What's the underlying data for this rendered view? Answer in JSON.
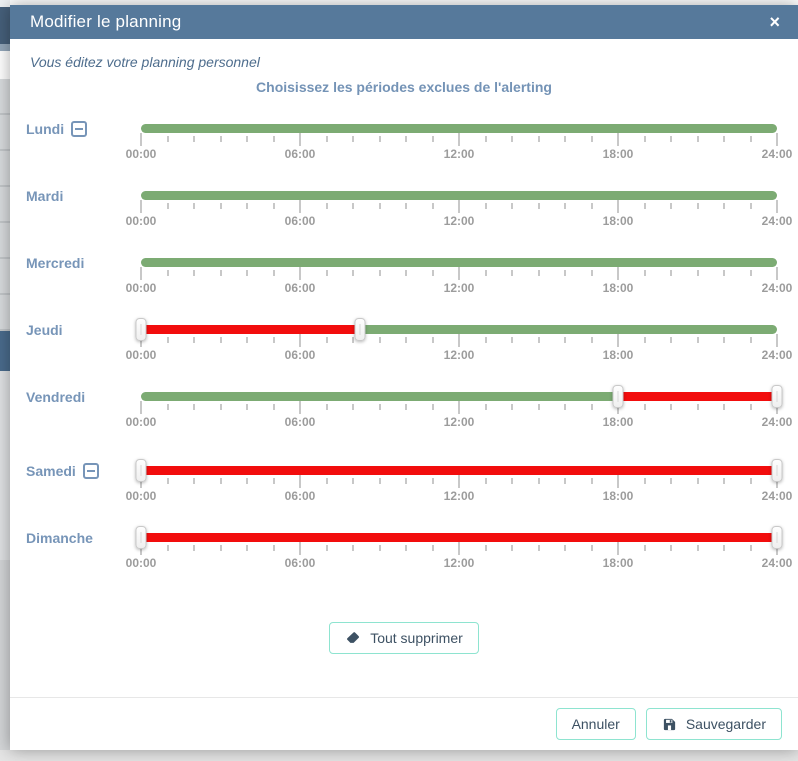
{
  "modal": {
    "title": "Modifier le planning",
    "close_glyph": "×",
    "subtitle": "Vous éditez votre planning personnel",
    "heading": "Choisissez les périodes exclues de l'alerting"
  },
  "slider": {
    "hours_total": 24,
    "minor_tick_every_hours": 1,
    "major_tick_every_hours": 6,
    "tick_labels": [
      "00:00",
      "06:00",
      "12:00",
      "18:00",
      "24:00"
    ],
    "colors": {
      "active": "#7cab73",
      "excluded": "#f20d0d"
    }
  },
  "days": [
    {
      "label": "Lundi",
      "has_remove_button": true,
      "extra_gap": false,
      "segments": [
        {
          "state": "active",
          "start": 0,
          "end": 24
        }
      ],
      "handles": []
    },
    {
      "label": "Mardi",
      "has_remove_button": false,
      "extra_gap": false,
      "segments": [
        {
          "state": "active",
          "start": 0,
          "end": 24
        }
      ],
      "handles": []
    },
    {
      "label": "Mercredi",
      "has_remove_button": false,
      "extra_gap": false,
      "segments": [
        {
          "state": "active",
          "start": 0,
          "end": 24
        }
      ],
      "handles": []
    },
    {
      "label": "Jeudi",
      "has_remove_button": false,
      "extra_gap": false,
      "segments": [
        {
          "state": "excluded",
          "start": 0,
          "end": 8.25
        },
        {
          "state": "active",
          "start": 8.25,
          "end": 24
        }
      ],
      "handles": [
        0,
        8.25
      ]
    },
    {
      "label": "Vendredi",
      "has_remove_button": false,
      "extra_gap": false,
      "segments": [
        {
          "state": "active",
          "start": 0,
          "end": 18
        },
        {
          "state": "excluded",
          "start": 18,
          "end": 24
        }
      ],
      "handles": [
        18,
        24
      ]
    },
    {
      "label": "Samedi",
      "has_remove_button": true,
      "extra_gap": true,
      "segments": [
        {
          "state": "excluded",
          "start": 0,
          "end": 24
        }
      ],
      "handles": [
        0,
        24
      ]
    },
    {
      "label": "Dimanche",
      "has_remove_button": false,
      "extra_gap": false,
      "segments": [
        {
          "state": "excluded",
          "start": 0,
          "end": 24
        }
      ],
      "handles": [
        0,
        24
      ]
    }
  ],
  "actions": {
    "clear_all_label": "Tout supprimer",
    "cancel_label": "Annuler",
    "save_label": "Sauvegarder"
  }
}
